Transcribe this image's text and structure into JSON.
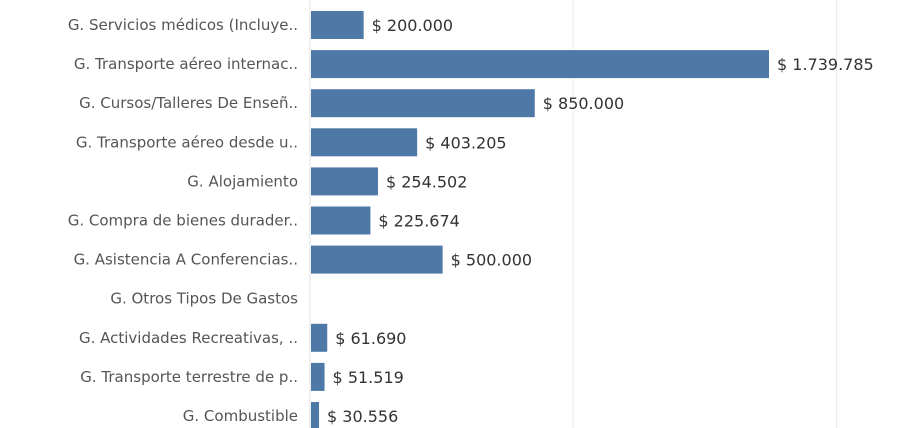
{
  "chart_data": {
    "type": "bar",
    "orientation": "horizontal",
    "title": "",
    "xlabel": "",
    "ylabel": "",
    "currency_prefix": "$ ",
    "categories": [
      "G. Servicios médicos (Incluye..",
      "G. Transporte aéreo internac..",
      "G. Cursos/Talleres De Enseñ..",
      "G. Transporte aéreo desde u..",
      "G. Alojamiento",
      "G. Compra de bienes durader..",
      "G. Asistencia A Conferencias..",
      "G. Otros Tipos De Gastos",
      "G. Actividades Recreativas, ..",
      "G. Transporte terrestre de p..",
      "G. Combustible"
    ],
    "values": [
      200000,
      1739785,
      850000,
      403205,
      254502,
      225674,
      500000,
      null,
      61690,
      51519,
      30556
    ],
    "value_labels": [
      "$ 200.000",
      "$ 1.739.785",
      "$ 850.000",
      "$ 403.205",
      "$ 254.502",
      "$ 225.674",
      "$ 500.000",
      "",
      "$ 61.690",
      "$ 51.519",
      "$ 30.556"
    ],
    "xlim": [
      0,
      2000000
    ],
    "gridlines_at": [
      1000000,
      2000000
    ],
    "grid": true,
    "bar_color": "#4e79a7"
  }
}
